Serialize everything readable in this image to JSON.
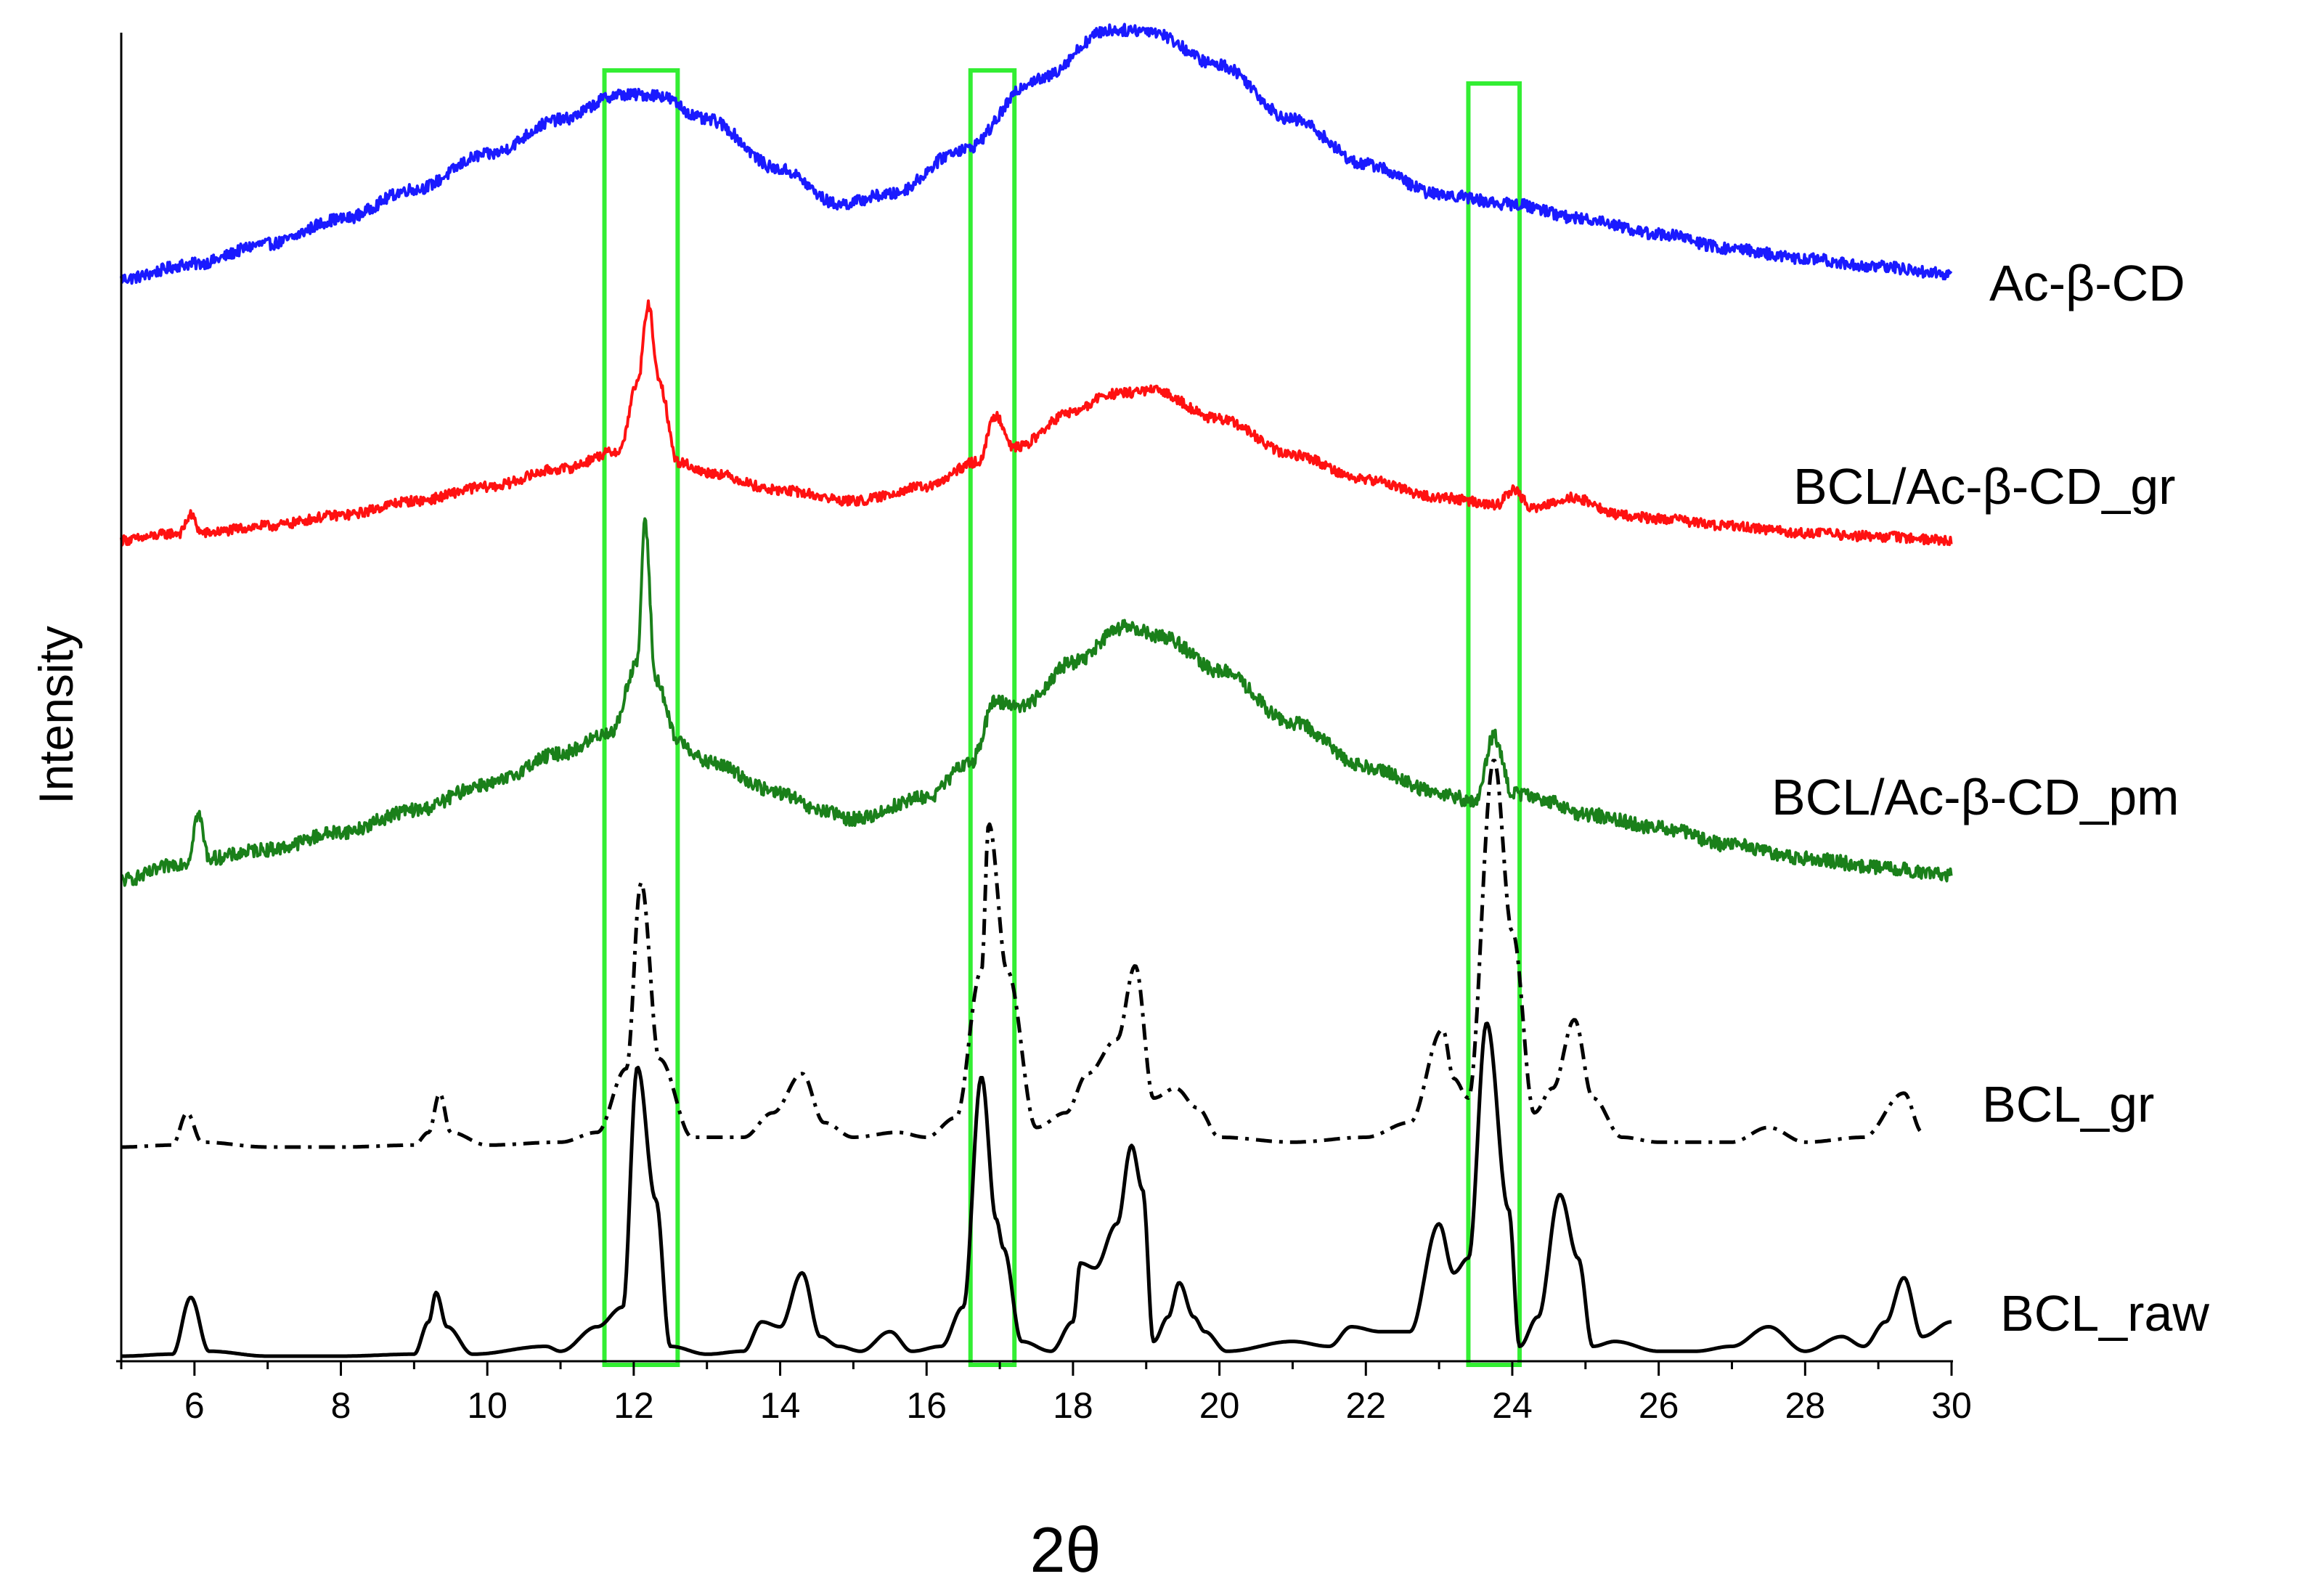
{
  "chart_data": {
    "type": "line",
    "title": "",
    "xlabel": "2θ",
    "ylabel": "Intensity",
    "xlim": [
      5,
      30
    ],
    "x_ticks": [
      6,
      8,
      10,
      12,
      14,
      16,
      18,
      20,
      22,
      24,
      26,
      28,
      30
    ],
    "y_ticks_shown": false,
    "grid": false,
    "legend": "none (series labelled at right end of each trace)",
    "highlight_regions": [
      {
        "x_range": [
          11.6,
          12.6
        ],
        "color": "#33ee33"
      },
      {
        "x_range": [
          16.6,
          17.2
        ],
        "color": "#33ee33"
      },
      {
        "x_range": [
          23.4,
          24.1
        ],
        "color": "#33ee33"
      }
    ],
    "series": [
      {
        "name": "Ac-β-CD",
        "color": "#1a1aff",
        "line_style": "solid",
        "noise": 0.06,
        "points": [
          [
            5,
            0.0
          ],
          [
            6,
            0.15
          ],
          [
            7,
            0.35
          ],
          [
            8,
            0.6
          ],
          [
            9,
            0.9
          ],
          [
            10,
            1.25
          ],
          [
            11,
            1.6
          ],
          [
            11.8,
            1.85
          ],
          [
            12.3,
            1.85
          ],
          [
            13,
            1.6
          ],
          [
            14,
            1.1
          ],
          [
            14.8,
            0.75
          ],
          [
            15.5,
            0.85
          ],
          [
            16.5,
            1.3
          ],
          [
            17.5,
            2.0
          ],
          [
            18.5,
            2.5
          ],
          [
            19,
            2.5
          ],
          [
            20,
            2.15
          ],
          [
            21,
            1.6
          ],
          [
            22,
            1.15
          ],
          [
            23,
            0.85
          ],
          [
            24,
            0.75
          ],
          [
            25,
            0.6
          ],
          [
            26,
            0.45
          ],
          [
            27,
            0.3
          ],
          [
            28,
            0.2
          ],
          [
            29,
            0.12
          ],
          [
            30,
            0.05
          ]
        ]
      },
      {
        "name": "BCL/Ac-β-CD_gr",
        "color": "#ff1111",
        "line_style": "solid",
        "noise": 0.07,
        "points": [
          [
            5,
            0.0
          ],
          [
            5.8,
            0.1
          ],
          [
            5.95,
            0.35
          ],
          [
            6.1,
            0.1
          ],
          [
            7,
            0.2
          ],
          [
            8,
            0.35
          ],
          [
            9,
            0.55
          ],
          [
            10,
            0.75
          ],
          [
            11,
            1.0
          ],
          [
            11.8,
            1.25
          ],
          [
            12.05,
            2.2
          ],
          [
            12.2,
            3.3
          ],
          [
            12.35,
            2.2
          ],
          [
            12.6,
            1.1
          ],
          [
            13,
            0.95
          ],
          [
            14,
            0.7
          ],
          [
            15,
            0.55
          ],
          [
            16,
            0.75
          ],
          [
            16.7,
            1.1
          ],
          [
            16.95,
            1.75
          ],
          [
            17.2,
            1.3
          ],
          [
            18,
            1.8
          ],
          [
            18.5,
            2.05
          ],
          [
            19.1,
            2.1
          ],
          [
            20,
            1.7
          ],
          [
            21,
            1.2
          ],
          [
            22,
            0.85
          ],
          [
            23,
            0.6
          ],
          [
            23.8,
            0.5
          ],
          [
            24,
            0.7
          ],
          [
            24.3,
            0.45
          ],
          [
            24.8,
            0.6
          ],
          [
            25.5,
            0.35
          ],
          [
            26,
            0.3
          ],
          [
            27,
            0.2
          ],
          [
            28,
            0.1
          ],
          [
            29,
            0.05
          ],
          [
            30,
            0.0
          ]
        ]
      },
      {
        "name": "BCL/Ac-β-CD_pm",
        "color": "#1a801a",
        "line_style": "solid",
        "noise": 0.08,
        "points": [
          [
            5,
            0.0
          ],
          [
            5.9,
            0.2
          ],
          [
            6.05,
            0.75
          ],
          [
            6.2,
            0.25
          ],
          [
            7,
            0.35
          ],
          [
            8,
            0.55
          ],
          [
            9,
            0.8
          ],
          [
            10,
            1.1
          ],
          [
            11,
            1.45
          ],
          [
            11.7,
            1.7
          ],
          [
            12.05,
            2.5
          ],
          [
            12.15,
            4.1
          ],
          [
            12.3,
            2.3
          ],
          [
            12.6,
            1.6
          ],
          [
            13,
            1.35
          ],
          [
            14,
            1.0
          ],
          [
            14.5,
            0.8
          ],
          [
            15,
            0.7
          ],
          [
            16,
            0.95
          ],
          [
            16.6,
            1.35
          ],
          [
            16.95,
            2.05
          ],
          [
            17.3,
            2.0
          ],
          [
            18,
            2.5
          ],
          [
            18.7,
            2.9
          ],
          [
            19.2,
            2.8
          ],
          [
            20,
            2.4
          ],
          [
            21,
            1.8
          ],
          [
            22,
            1.3
          ],
          [
            23,
            1.0
          ],
          [
            23.5,
            0.9
          ],
          [
            23.75,
            1.65
          ],
          [
            24.0,
            1.0
          ],
          [
            24.5,
            0.9
          ],
          [
            25,
            0.75
          ],
          [
            26,
            0.6
          ],
          [
            27,
            0.4
          ],
          [
            28,
            0.25
          ],
          [
            29,
            0.15
          ],
          [
            30,
            0.05
          ]
        ]
      },
      {
        "name": "BCL_gr",
        "color": "#000000",
        "line_style": "dash-dot",
        "noise": 0.0,
        "points": [
          [
            5,
            0.0
          ],
          [
            5.7,
            0.02
          ],
          [
            5.9,
            0.35
          ],
          [
            6.1,
            0.05
          ],
          [
            7,
            0.0
          ],
          [
            8,
            0.0
          ],
          [
            9,
            0.02
          ],
          [
            9.2,
            0.15
          ],
          [
            9.35,
            0.55
          ],
          [
            9.5,
            0.15
          ],
          [
            10,
            0.02
          ],
          [
            11,
            0.05
          ],
          [
            11.5,
            0.15
          ],
          [
            11.9,
            0.8
          ],
          [
            12.1,
            2.7
          ],
          [
            12.35,
            0.9
          ],
          [
            12.8,
            0.1
          ],
          [
            13.5,
            0.1
          ],
          [
            13.9,
            0.35
          ],
          [
            14.3,
            0.75
          ],
          [
            14.6,
            0.25
          ],
          [
            15,
            0.1
          ],
          [
            15.6,
            0.15
          ],
          [
            16,
            0.1
          ],
          [
            16.4,
            0.3
          ],
          [
            16.75,
            1.8
          ],
          [
            16.85,
            3.3
          ],
          [
            17.1,
            1.8
          ],
          [
            17.5,
            0.2
          ],
          [
            17.9,
            0.35
          ],
          [
            18.2,
            0.75
          ],
          [
            18.6,
            1.1
          ],
          [
            18.85,
            1.85
          ],
          [
            19.1,
            0.5
          ],
          [
            19.4,
            0.6
          ],
          [
            19.7,
            0.4
          ],
          [
            20.0,
            0.1
          ],
          [
            21,
            0.05
          ],
          [
            22,
            0.1
          ],
          [
            22.6,
            0.25
          ],
          [
            23.05,
            1.2
          ],
          [
            23.2,
            0.7
          ],
          [
            23.4,
            0.5
          ],
          [
            23.75,
            3.95
          ],
          [
            24.0,
            2.2
          ],
          [
            24.3,
            0.35
          ],
          [
            24.55,
            0.6
          ],
          [
            24.85,
            1.3
          ],
          [
            25.1,
            0.5
          ],
          [
            25.5,
            0.1
          ],
          [
            26,
            0.05
          ],
          [
            27,
            0.05
          ],
          [
            27.5,
            0.2
          ],
          [
            28,
            0.05
          ],
          [
            28.8,
            0.1
          ],
          [
            29.35,
            0.55
          ],
          [
            29.6,
            0.15
          ]
        ]
      },
      {
        "name": "BCL_raw",
        "color": "#000000",
        "line_style": "solid",
        "noise": 0.0,
        "points": [
          [
            5,
            0.0
          ],
          [
            5.7,
            0.02
          ],
          [
            5.95,
            0.6
          ],
          [
            6.2,
            0.05
          ],
          [
            7,
            0.0
          ],
          [
            8,
            0.0
          ],
          [
            9,
            0.02
          ],
          [
            9.2,
            0.35
          ],
          [
            9.3,
            0.65
          ],
          [
            9.45,
            0.3
          ],
          [
            9.8,
            0.02
          ],
          [
            10.8,
            0.1
          ],
          [
            11.0,
            0.05
          ],
          [
            11.5,
            0.3
          ],
          [
            11.85,
            0.5
          ],
          [
            12.05,
            2.95
          ],
          [
            12.3,
            1.6
          ],
          [
            12.5,
            0.1
          ],
          [
            13,
            0.02
          ],
          [
            13.5,
            0.05
          ],
          [
            13.75,
            0.35
          ],
          [
            14.0,
            0.3
          ],
          [
            14.3,
            0.85
          ],
          [
            14.55,
            0.2
          ],
          [
            14.8,
            0.1
          ],
          [
            15.1,
            0.05
          ],
          [
            15.5,
            0.25
          ],
          [
            15.8,
            0.05
          ],
          [
            16.2,
            0.1
          ],
          [
            16.5,
            0.5
          ],
          [
            16.75,
            2.85
          ],
          [
            16.95,
            1.4
          ],
          [
            17.05,
            1.1
          ],
          [
            17.3,
            0.15
          ],
          [
            17.7,
            0.05
          ],
          [
            18.0,
            0.35
          ],
          [
            18.1,
            0.95
          ],
          [
            18.3,
            0.9
          ],
          [
            18.6,
            1.35
          ],
          [
            18.8,
            2.15
          ],
          [
            18.95,
            1.7
          ],
          [
            19.1,
            0.15
          ],
          [
            19.3,
            0.4
          ],
          [
            19.45,
            0.75
          ],
          [
            19.65,
            0.4
          ],
          [
            19.8,
            0.25
          ],
          [
            20.1,
            0.05
          ],
          [
            21,
            0.15
          ],
          [
            21.5,
            0.1
          ],
          [
            21.8,
            0.3
          ],
          [
            22.2,
            0.25
          ],
          [
            22.6,
            0.25
          ],
          [
            23.0,
            1.35
          ],
          [
            23.2,
            0.85
          ],
          [
            23.4,
            1.0
          ],
          [
            23.65,
            3.4
          ],
          [
            23.95,
            1.5
          ],
          [
            24.1,
            0.1
          ],
          [
            24.35,
            0.4
          ],
          [
            24.65,
            1.65
          ],
          [
            24.9,
            1.0
          ],
          [
            25.1,
            0.1
          ],
          [
            25.4,
            0.15
          ],
          [
            26,
            0.05
          ],
          [
            26.5,
            0.05
          ],
          [
            27,
            0.1
          ],
          [
            27.5,
            0.3
          ],
          [
            28,
            0.05
          ],
          [
            28.5,
            0.2
          ],
          [
            28.8,
            0.1
          ],
          [
            29.1,
            0.35
          ],
          [
            29.35,
            0.8
          ],
          [
            29.6,
            0.2
          ],
          [
            30,
            0.35
          ]
        ]
      }
    ]
  }
}
